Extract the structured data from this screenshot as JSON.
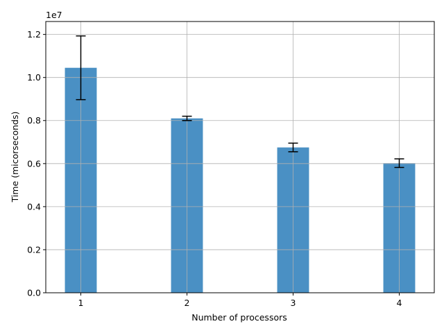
{
  "chart_data": {
    "type": "bar",
    "categories": [
      1,
      2,
      3,
      4
    ],
    "tick_labels": [
      "1",
      "2",
      "3",
      "4"
    ],
    "values": [
      10450000,
      8100000,
      6750000,
      6020000
    ],
    "errors": [
      1480000,
      100000,
      200000,
      200000
    ],
    "xlabel": "Number of processors",
    "ylabel": "Time (micorseconds)",
    "y_multiplier": "1e7",
    "ylim": [
      0,
      12600000
    ],
    "xlim": [
      0.67,
      4.33
    ],
    "yticks": [
      0,
      2000000,
      4000000,
      6000000,
      8000000,
      10000000,
      12000000
    ],
    "ytick_labels": [
      "0.0",
      "0.2",
      "0.4",
      "0.6",
      "0.8",
      "1.0",
      "1.2"
    ],
    "grid": true,
    "bar_color": "#4a90c4",
    "error_color": "#000000"
  }
}
